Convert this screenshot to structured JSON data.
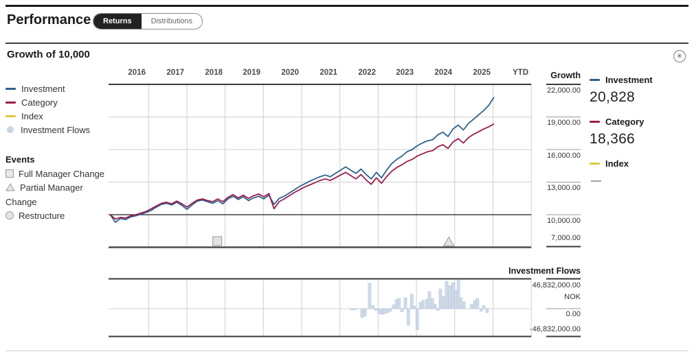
{
  "header": {
    "title": "Performance",
    "tabs": [
      {
        "label": "Returns",
        "active": true
      },
      {
        "label": "Distributions",
        "active": false
      }
    ]
  },
  "section": {
    "title": "Growth of 10,000",
    "action_icon": "circled-asterisk-icon"
  },
  "legend": {
    "series": [
      {
        "label": "Investment",
        "color": "#2e618c",
        "marker": "dash"
      },
      {
        "label": "Category",
        "color": "#9b1b4d",
        "marker": "dash"
      },
      {
        "label": "Index",
        "color": "#ddca3a",
        "marker": "dash"
      },
      {
        "label": "Investment Flows",
        "color": "#c8d5e5",
        "marker": "circle"
      }
    ]
  },
  "events": {
    "title": "Events",
    "items": [
      {
        "label": "Full Manager Change",
        "marker": "square"
      },
      {
        "label": "Partial Manager Change",
        "marker": "triangle"
      },
      {
        "label": "Restructure",
        "marker": "circle"
      }
    ]
  },
  "x_axis": {
    "labels": [
      "2016",
      "2017",
      "2018",
      "2019",
      "2020",
      "2021",
      "2022",
      "2023",
      "2024",
      "2025",
      "YTD"
    ]
  },
  "growth_axis": {
    "header": "Growth",
    "ticks": [
      "22,000.00",
      "19,000.00",
      "16,000.00",
      "13,000.00",
      "10,000.00",
      "7,000.00"
    ]
  },
  "right_legend": {
    "items": [
      {
        "label": "Investment",
        "value": "20,828",
        "color": "#2e618c"
      },
      {
        "label": "Category",
        "value": "18,366",
        "color": "#9b1b4d"
      },
      {
        "label": "Index",
        "value": "—",
        "color": "#ddca3a"
      }
    ]
  },
  "flows_panel": {
    "header": "Investment Flows",
    "max_label": "46,832,000.00",
    "currency": "NOK",
    "zero_label": "0.00",
    "min_label": "-46,832,000.00"
  },
  "chart_data": [
    {
      "type": "line",
      "title": "Growth of 10,000",
      "x_range": [
        "2016-01",
        "2025-YTD"
      ],
      "ylim": [
        7000,
        22000
      ],
      "yticks": [
        7000,
        10000,
        13000,
        16000,
        19000,
        22000
      ],
      "baseline": 10000,
      "grid": true,
      "legend_position": "right",
      "series": [
        {
          "name": "Investment",
          "color": "#2e618c",
          "final_value": 20828,
          "values": [
            10000,
            9300,
            9650,
            9550,
            9800,
            9900,
            10050,
            10200,
            10400,
            10700,
            10950,
            11050,
            10900,
            11150,
            10850,
            10500,
            10900,
            11250,
            11350,
            11200,
            11050,
            11300,
            11000,
            11450,
            11700,
            11400,
            11650,
            11300,
            11550,
            11700,
            11450,
            11800,
            10950,
            11500,
            11700,
            12000,
            12300,
            12600,
            12850,
            13100,
            13300,
            13500,
            13650,
            13500,
            13800,
            14100,
            14400,
            14100,
            13800,
            14200,
            13700,
            13300,
            13900,
            13400,
            14100,
            14700,
            15100,
            15400,
            15800,
            16000,
            16350,
            16600,
            16800,
            16900,
            17350,
            17600,
            17200,
            17900,
            18250,
            17800,
            18400,
            18800,
            19200,
            19600,
            20100,
            20828
          ]
        },
        {
          "name": "Category",
          "color": "#9b1b4d",
          "final_value": 18366,
          "values": [
            10000,
            9600,
            9750,
            9700,
            9900,
            10000,
            10150,
            10300,
            10550,
            10800,
            11050,
            11150,
            11000,
            11250,
            11000,
            10700,
            11050,
            11350,
            11450,
            11300,
            11200,
            11450,
            11200,
            11600,
            11850,
            11550,
            11800,
            11500,
            11750,
            11900,
            11650,
            11950,
            10550,
            11200,
            11450,
            11750,
            12050,
            12300,
            12550,
            12750,
            12950,
            13150,
            13300,
            13150,
            13400,
            13650,
            13900,
            13600,
            13300,
            13700,
            13200,
            12800,
            13400,
            12900,
            13500,
            14000,
            14350,
            14600,
            14900,
            15100,
            15400,
            15600,
            15800,
            15900,
            16250,
            16450,
            16100,
            16700,
            17000,
            16600,
            17100,
            17400,
            17650,
            17900,
            18100,
            18366
          ]
        },
        {
          "name": "Index",
          "color": "#ddca3a",
          "final_value": null,
          "values": []
        }
      ],
      "events": [
        {
          "type": "Full Manager Change",
          "shape": "square",
          "x_frac": 0.254
        },
        {
          "type": "Partial Manager Change",
          "shape": "triangle",
          "x_frac": 0.804
        }
      ]
    },
    {
      "type": "bar",
      "title": "Investment Flows",
      "unit": "NOK, millions",
      "ylim": [
        -46.832,
        46.832
      ],
      "bar_color": "#c8d5e5",
      "bars": [
        [
          0.574,
          -2
        ],
        [
          0.582,
          -1.5
        ],
        [
          0.598,
          -14
        ],
        [
          0.605,
          -12
        ],
        [
          0.616,
          40
        ],
        [
          0.624,
          5
        ],
        [
          0.631,
          -3
        ],
        [
          0.639,
          -8
        ],
        [
          0.646,
          -9
        ],
        [
          0.652,
          -8
        ],
        [
          0.659,
          -6
        ],
        [
          0.665,
          -4
        ],
        [
          0.673,
          6
        ],
        [
          0.68,
          14
        ],
        [
          0.686,
          16
        ],
        [
          0.693,
          -5
        ],
        [
          0.701,
          17
        ],
        [
          0.708,
          -26
        ],
        [
          0.716,
          23
        ],
        [
          0.722,
          4
        ],
        [
          0.729,
          -33
        ],
        [
          0.737,
          10
        ],
        [
          0.743,
          13
        ],
        [
          0.752,
          15
        ],
        [
          0.758,
          27
        ],
        [
          0.765,
          16
        ],
        [
          0.771,
          7
        ],
        [
          0.778,
          -3
        ],
        [
          0.784,
          31
        ],
        [
          0.792,
          19
        ],
        [
          0.799,
          43
        ],
        [
          0.807,
          36
        ],
        [
          0.814,
          41
        ],
        [
          0.82,
          29
        ],
        [
          0.827,
          45
        ],
        [
          0.833,
          17
        ],
        [
          0.84,
          11
        ],
        [
          0.858,
          7
        ],
        [
          0.866,
          13
        ],
        [
          0.872,
          16
        ],
        [
          0.881,
          -4
        ],
        [
          0.887,
          5
        ],
        [
          0.895,
          -6
        ]
      ]
    }
  ]
}
